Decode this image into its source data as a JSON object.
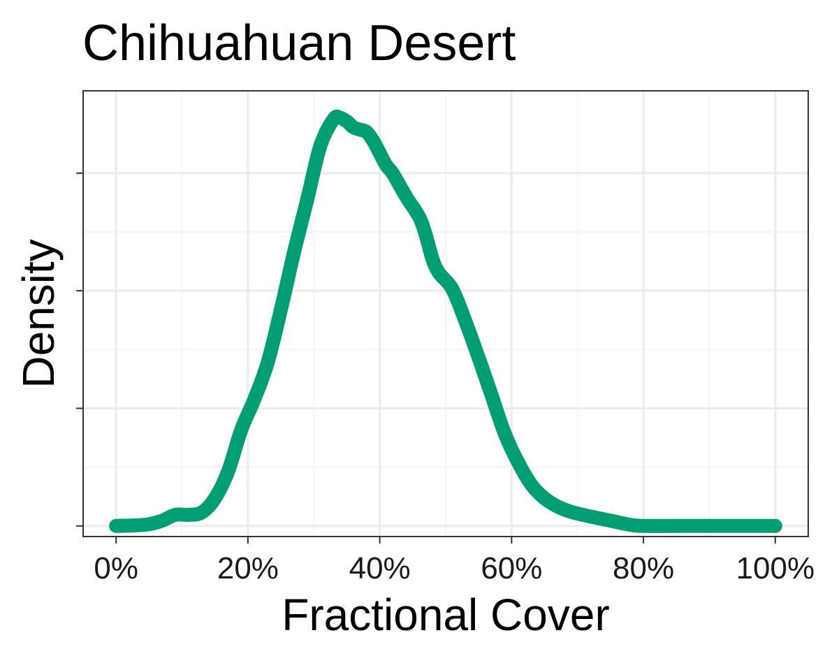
{
  "chart_data": {
    "type": "area",
    "title": "Chihuahuan Desert",
    "xlabel": "Fractional Cover",
    "ylabel": "Density",
    "x_tick_labels": [
      "0%",
      "20%",
      "40%",
      "60%",
      "80%",
      "100%"
    ],
    "x_ticks": [
      0,
      20,
      40,
      60,
      80,
      100
    ],
    "xlim": [
      -5,
      105
    ],
    "ylim": [
      -0.18,
      7.4
    ],
    "y_ticks_major": [
      0,
      2,
      4,
      6
    ],
    "y_tick_labels_shown": false,
    "grid": true,
    "legend": "none",
    "colors": {
      "line": "#009E73",
      "panel_border": "#333333",
      "grid_major": "#EBEBEB",
      "grid_minor": "#F4F4F4"
    },
    "series": [
      {
        "points": [
          [
            0,
            0.0
          ],
          [
            3,
            0.01
          ],
          [
            5,
            0.03
          ],
          [
            7,
            0.09
          ],
          [
            9,
            0.19
          ],
          [
            11,
            0.19
          ],
          [
            13,
            0.23
          ],
          [
            15,
            0.47
          ],
          [
            17,
            0.93
          ],
          [
            19,
            1.64
          ],
          [
            21,
            2.16
          ],
          [
            23,
            2.78
          ],
          [
            25,
            3.68
          ],
          [
            27,
            4.66
          ],
          [
            29,
            5.55
          ],
          [
            31,
            6.47
          ],
          [
            33,
            6.92
          ],
          [
            34,
            6.94
          ],
          [
            35,
            6.88
          ],
          [
            36,
            6.78
          ],
          [
            37,
            6.74
          ],
          [
            38,
            6.7
          ],
          [
            39,
            6.55
          ],
          [
            40,
            6.34
          ],
          [
            41,
            6.13
          ],
          [
            42,
            5.99
          ],
          [
            44,
            5.6
          ],
          [
            46,
            5.25
          ],
          [
            47,
            4.94
          ],
          [
            48,
            4.54
          ],
          [
            49,
            4.3
          ],
          [
            51,
            4.03
          ],
          [
            53,
            3.48
          ],
          [
            55,
            2.86
          ],
          [
            57,
            2.21
          ],
          [
            59,
            1.56
          ],
          [
            61,
            1.08
          ],
          [
            63,
            0.7
          ],
          [
            65,
            0.47
          ],
          [
            67,
            0.33
          ],
          [
            69,
            0.24
          ],
          [
            72,
            0.16
          ],
          [
            75,
            0.09
          ],
          [
            78,
            0.02
          ],
          [
            80,
            0.0
          ],
          [
            85,
            0.0
          ],
          [
            90,
            0.0
          ],
          [
            95,
            0.0
          ],
          [
            100,
            0.0
          ]
        ]
      }
    ]
  }
}
